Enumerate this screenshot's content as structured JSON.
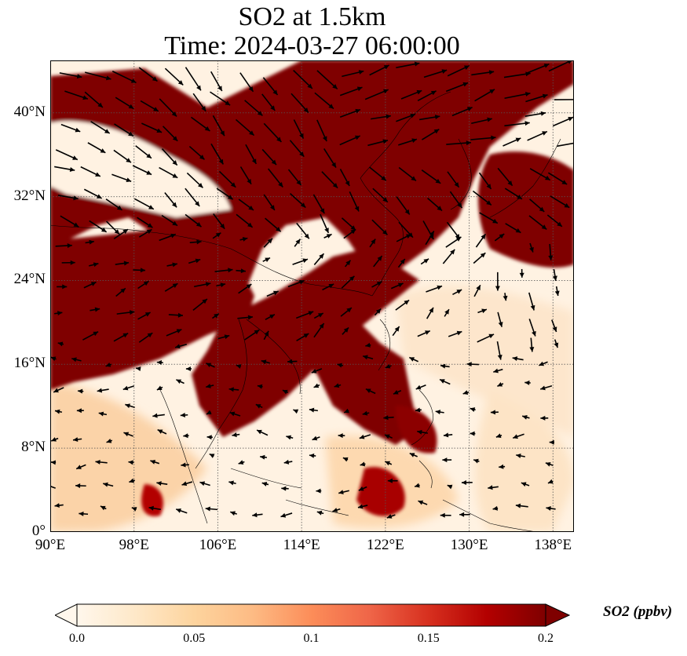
{
  "title": {
    "line1": "SO2 at 1.5km",
    "line2": "Time: 2024-03-27 06:00:00"
  },
  "map": {
    "lon_range": [
      90,
      140
    ],
    "lat_range": [
      0,
      45
    ],
    "x_ticks": [
      {
        "lon": 90,
        "label": "90°E"
      },
      {
        "lon": 98,
        "label": "98°E"
      },
      {
        "lon": 106,
        "label": "106°E"
      },
      {
        "lon": 114,
        "label": "114°E"
      },
      {
        "lon": 122,
        "label": "122°E"
      },
      {
        "lon": 130,
        "label": "130°E"
      },
      {
        "lon": 138,
        "label": "138°E"
      }
    ],
    "y_ticks": [
      {
        "lat": 0,
        "label": "0°"
      },
      {
        "lat": 8,
        "label": "8°N"
      },
      {
        "lat": 16,
        "label": "16°N"
      },
      {
        "lat": 24,
        "label": "24°N"
      },
      {
        "lat": 32,
        "label": "32°N"
      },
      {
        "lat": 40,
        "label": "40°N"
      }
    ],
    "gridlines": true,
    "field": "SO2 concentration (shaded) with wind vectors"
  },
  "colorbar": {
    "label": "SO2 (ppbv)",
    "min": 0.0,
    "max": 0.2,
    "ticks": [
      {
        "value": 0.0,
        "label": "0.0"
      },
      {
        "value": 0.05,
        "label": "0.05"
      },
      {
        "value": 0.1,
        "label": "0.1"
      },
      {
        "value": 0.15,
        "label": "0.15"
      },
      {
        "value": 0.2,
        "label": "0.2"
      }
    ],
    "colormap": [
      "#fff7ec",
      "#fee8c8",
      "#fdd49e",
      "#fdbb84",
      "#fc8d59",
      "#ef6548",
      "#d7301f",
      "#b30000",
      "#7f0000"
    ],
    "extend": "both"
  },
  "colors": {
    "high": "#7f0000",
    "low": "#fff7ec"
  }
}
